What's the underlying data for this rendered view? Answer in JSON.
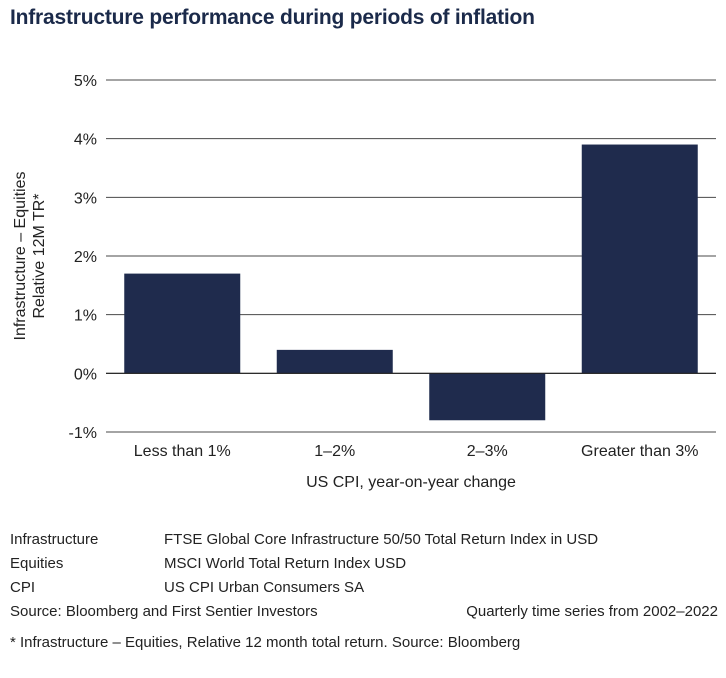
{
  "title": "Infrastructure performance during periods of inflation",
  "chart_data": {
    "type": "bar",
    "categories": [
      "Less than 1%",
      "1–2%",
      "2–3%",
      "Greater than 3%"
    ],
    "values": [
      1.7,
      0.4,
      -0.8,
      3.9
    ],
    "yticks": [
      "5%",
      "4%",
      "3%",
      "2%",
      "1%",
      "0%",
      "-1%"
    ],
    "ylim": [
      -1,
      5
    ],
    "ylabel_lines": [
      "Infrastructure – Equities",
      "Relative 12M TR*"
    ],
    "xlabel": "US CPI, year-on-year change",
    "bar_color": "#1f2b4d",
    "grid": true,
    "legend": "none"
  },
  "notes": [
    {
      "key": "Infrastructure",
      "value": "FTSE Global Core Infrastructure 50/50 Total Return Index in USD"
    },
    {
      "key": "Equities",
      "value": "MSCI World Total Return Index USD"
    },
    {
      "key": "CPI",
      "value": "US CPI Urban Consumers SA"
    }
  ],
  "source": "Source: Bloomberg and First Sentier Investors",
  "series_note": "Quarterly time series from 2002–2022",
  "footnote": "* Infrastructure – Equities, Relative 12 month total return. Source: Bloomberg"
}
